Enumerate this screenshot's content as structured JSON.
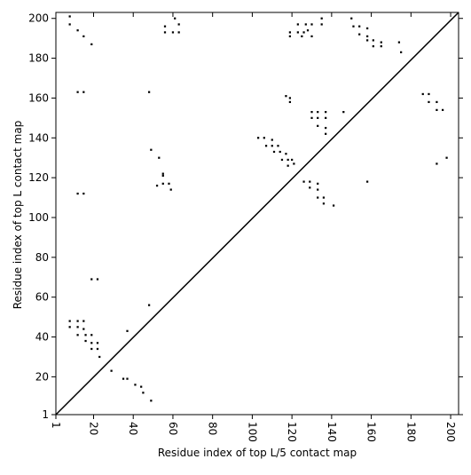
{
  "chart_data": {
    "type": "scatter",
    "xlabel": "Residue index of top L/5 contact map",
    "ylabel": "Residue index of top L contact map",
    "color": "#000000",
    "xlim": [
      1,
      204
    ],
    "ylim": [
      1,
      203
    ],
    "xticks": [
      1,
      20,
      40,
      60,
      80,
      100,
      120,
      140,
      160,
      180,
      200
    ],
    "yticks": [
      1,
      20,
      40,
      60,
      80,
      100,
      120,
      140,
      160,
      180,
      200
    ],
    "x": [
      8,
      8,
      12,
      15,
      19,
      12,
      15,
      12,
      15,
      19,
      22,
      48,
      49,
      53,
      55,
      55,
      55,
      58,
      59,
      52,
      56,
      61,
      63,
      56,
      60,
      63,
      103,
      106,
      110,
      107,
      110,
      113,
      111,
      114,
      117,
      115,
      118,
      120,
      118,
      121,
      117,
      119,
      119,
      126,
      129,
      133,
      129,
      133,
      133,
      136,
      136,
      141,
      130,
      133,
      137,
      130,
      133,
      137,
      133,
      137,
      137,
      146,
      119,
      119,
      123,
      126,
      130,
      125,
      123,
      127,
      128,
      130,
      135,
      135,
      150,
      151,
      154,
      154,
      158,
      158,
      158,
      161,
      161,
      165,
      165,
      174,
      175,
      186,
      189,
      189,
      193,
      193,
      196,
      193,
      198,
      158,
      8,
      12,
      15,
      8,
      12,
      15,
      12,
      16,
      19,
      16,
      19,
      22,
      19,
      22,
      23,
      37,
      48,
      29,
      35,
      37,
      41,
      44,
      45,
      49
    ],
    "y": [
      201,
      197,
      194,
      191,
      187,
      163,
      163,
      112,
      112,
      69,
      69,
      163,
      134,
      130,
      122,
      121,
      117,
      117,
      114,
      116,
      196,
      200,
      197,
      193,
      193,
      193,
      140,
      140,
      139,
      136,
      136,
      136,
      133,
      133,
      132,
      129,
      129,
      129,
      126,
      127,
      161,
      160,
      158,
      118,
      118,
      117,
      115,
      114,
      110,
      110,
      107,
      106,
      153,
      153,
      153,
      150,
      150,
      150,
      146,
      145,
      142,
      153,
      191,
      193,
      193,
      193,
      191,
      191,
      197,
      197,
      194,
      197,
      200,
      197,
      200,
      196,
      196,
      192,
      191,
      195,
      189,
      189,
      186,
      188,
      186,
      188,
      183,
      162,
      162,
      158,
      158,
      154,
      154,
      127,
      130,
      118,
      48,
      48,
      48,
      45,
      45,
      44,
      41,
      41,
      41,
      38,
      37,
      37,
      34,
      34,
      30,
      43,
      56,
      23,
      19,
      19,
      16,
      15,
      12,
      8
    ]
  }
}
